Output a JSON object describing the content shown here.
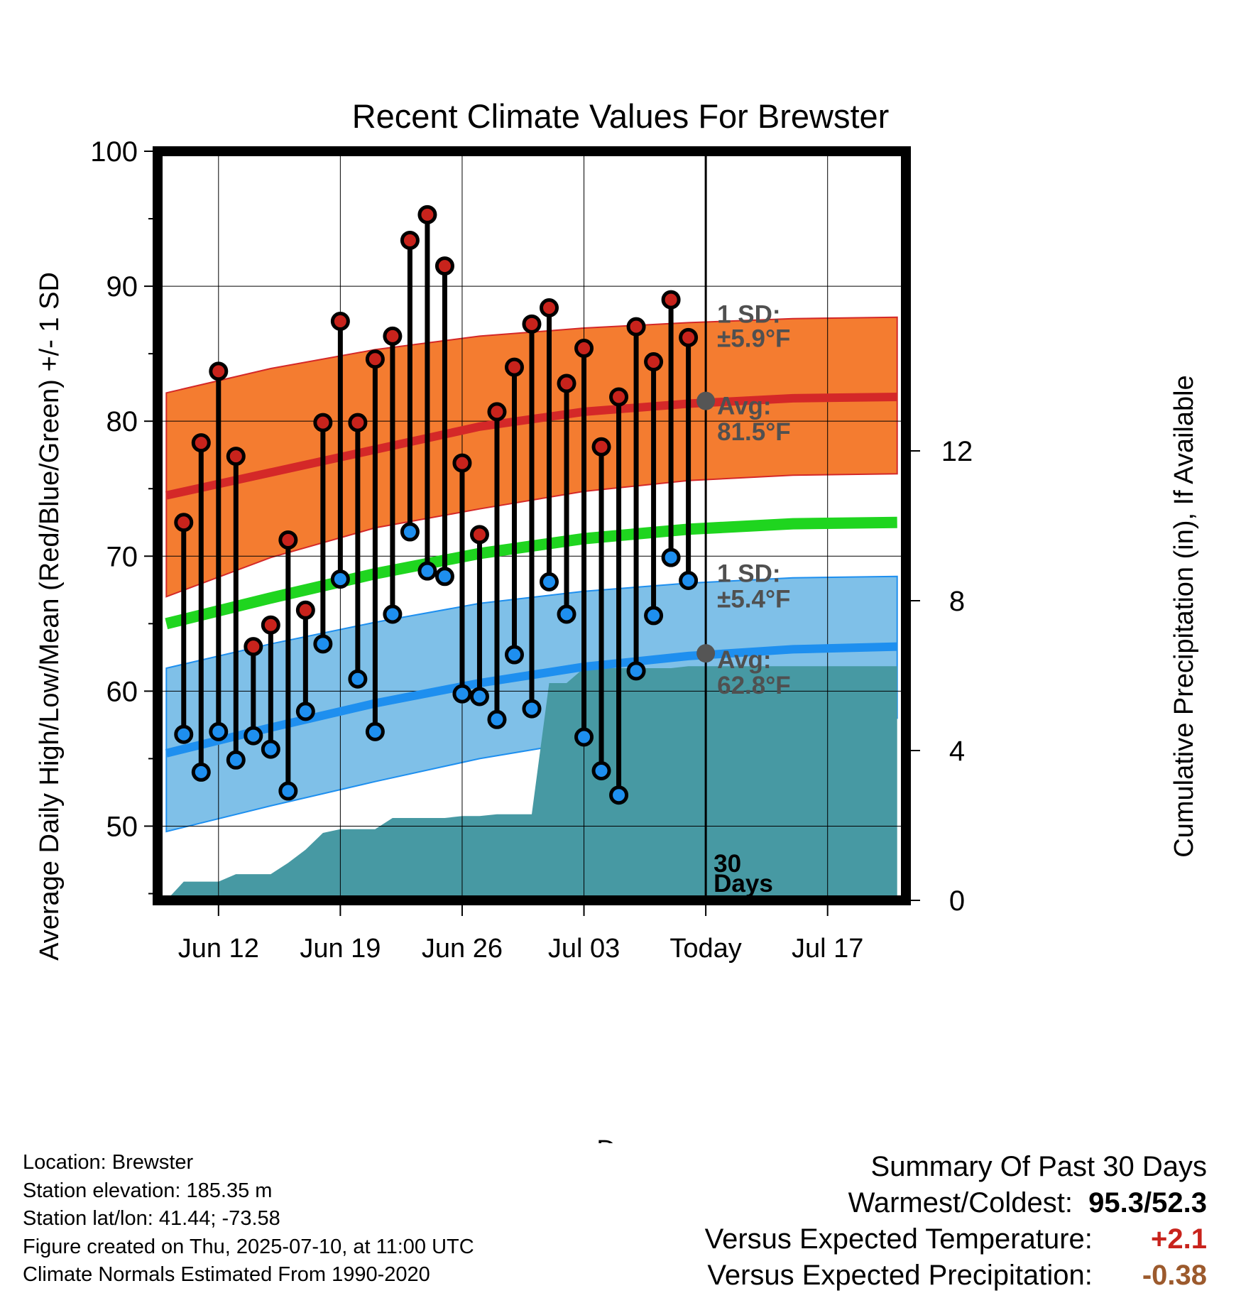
{
  "chart_data": {
    "type": "line",
    "title": "Recent Climate Values For Brewster",
    "xlabel": "Day",
    "ylabel": "Average Daily High/Low/Mean (Red/Blue/Green) +/- 1 SD",
    "y2label": "Cumulative Precipitation (in), If Available",
    "ylim": [
      44.5,
      100
    ],
    "y2lim": [
      0,
      20.0
    ],
    "xlim": [
      -31.5,
      11.5
    ],
    "yticks": [
      50,
      60,
      70,
      80,
      90,
      100
    ],
    "y2ticks": [
      0,
      4,
      8,
      12
    ],
    "xticks": [
      {
        "day": -28,
        "label": "Jun 12"
      },
      {
        "day": -21,
        "label": "Jun 19"
      },
      {
        "day": -14,
        "label": "Jun 26"
      },
      {
        "day": -7,
        "label": "Jul 03"
      },
      {
        "day": 0,
        "label": "Today"
      },
      {
        "day": 7,
        "label": "Jul 17"
      }
    ],
    "grid": true,
    "days": [
      -30,
      -29,
      -28,
      -27,
      -26,
      -25,
      -24,
      -23,
      -22,
      -21,
      -20,
      -19,
      -18,
      -17,
      -16,
      -15,
      -14,
      -13,
      -12,
      -11,
      -10,
      -9,
      -8,
      -7,
      -6,
      -5,
      -4,
      -3,
      -2,
      -1
    ],
    "highs": [
      72.5,
      78.4,
      83.7,
      77.4,
      63.3,
      64.9,
      71.2,
      66.0,
      79.9,
      87.4,
      79.9,
      84.6,
      86.3,
      93.4,
      95.3,
      91.5,
      76.9,
      71.6,
      80.7,
      84.0,
      87.2,
      88.4,
      82.8,
      85.4,
      78.1,
      81.8,
      87.0,
      84.4,
      89.0,
      86.2
    ],
    "lows": [
      56.8,
      54.0,
      57.0,
      54.9,
      56.7,
      55.7,
      52.6,
      58.5,
      63.5,
      68.3,
      60.9,
      57.0,
      65.7,
      71.8,
      68.9,
      68.5,
      59.8,
      59.6,
      57.9,
      62.7,
      58.7,
      68.1,
      65.7,
      56.6,
      54.1,
      52.3,
      61.5,
      65.6,
      69.9,
      68.2
    ],
    "normals": {
      "days": [
        -31,
        -25,
        -19,
        -13,
        -7,
        -1,
        5,
        11
      ],
      "high_mean": [
        74.5,
        76.2,
        77.9,
        79.6,
        80.7,
        81.3,
        81.7,
        81.8
      ],
      "high_upper": [
        82.1,
        83.9,
        85.3,
        86.3,
        86.9,
        87.3,
        87.6,
        87.7
      ],
      "high_lower": [
        67.0,
        69.9,
        72.1,
        73.5,
        74.8,
        75.6,
        76.0,
        76.1
      ],
      "low_mean": [
        55.4,
        57.3,
        59.1,
        60.6,
        61.8,
        62.6,
        63.1,
        63.3
      ],
      "low_upper": [
        61.7,
        63.5,
        65.1,
        66.5,
        67.4,
        68.0,
        68.4,
        68.5
      ],
      "low_lower": [
        49.6,
        51.5,
        53.3,
        55.0,
        56.3,
        57.1,
        57.7,
        58.0
      ],
      "mean": [
        65.0,
        66.9,
        68.7,
        70.2,
        71.3,
        72.0,
        72.4,
        72.5
      ]
    },
    "precip_cumulative": {
      "days": [
        -31,
        -30,
        -29,
        -28,
        -27,
        -26,
        -25,
        -24,
        -23,
        -22,
        -21,
        -20,
        -19,
        -18,
        -17,
        -16,
        -15,
        -14,
        -13,
        -12,
        -11,
        -10,
        -9,
        -8,
        -7,
        -6,
        -5,
        -4,
        -3,
        -2,
        -1,
        0,
        11
      ],
      "values": [
        0.0,
        0.5,
        0.5,
        0.5,
        0.7,
        0.7,
        0.7,
        1.0,
        1.35,
        1.8,
        1.9,
        1.9,
        1.9,
        2.2,
        2.2,
        2.2,
        2.2,
        2.25,
        2.25,
        2.3,
        2.3,
        2.3,
        5.8,
        5.8,
        6.2,
        6.2,
        6.2,
        6.2,
        6.2,
        6.2,
        6.25,
        6.25,
        6.25
      ]
    },
    "annotations": {
      "high_sd": "1 SD:",
      "high_sd_val": "±5.9°F",
      "high_avg": "Avg:",
      "high_avg_val": "81.5°F",
      "high_avg_value": 81.5,
      "low_sd": "1 SD:",
      "low_sd_val": "±5.4°F",
      "low_avg": "Avg:",
      "low_avg_val": "62.8°F",
      "low_avg_value": 62.8,
      "days_count": "30",
      "days_word": "Days"
    },
    "colors": {
      "high_band": "#f47c30",
      "high_line": "#d42828",
      "low_band": "#7fc0e8",
      "low_line": "#1e8fef",
      "mean_line": "#1fd51f",
      "precip_fill": "#4799a3",
      "high_dot": "#c8231c",
      "low_dot": "#1e8fef",
      "today_dot": "#555555",
      "annotation_text": "#505050"
    }
  },
  "footer": {
    "location": "Location: Brewster",
    "elevation": "Station elevation: 185.35 m",
    "latlon": "Station lat/lon: 41.44; -73.58",
    "created": "Figure created on Thu, 2025-07-10, at 11:00 UTC",
    "normals": "Climate Normals Estimated From 1990-2020"
  },
  "summary": {
    "title": "Summary Of Past 30 Days",
    "warmest_label": "Warmest/Coldest:",
    "warmest_value": "95.3/52.3",
    "temp_label": "Versus Expected Temperature:",
    "temp_value": "+2.1",
    "precip_label": "Versus Expected Precipitation:",
    "precip_value": "-0.38"
  }
}
